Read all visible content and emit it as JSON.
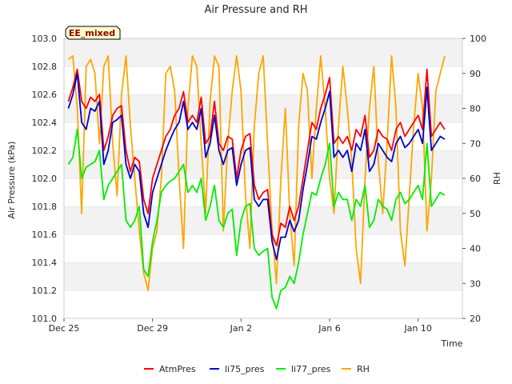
{
  "chart_data": {
    "type": "line",
    "title": "Air Pressure and RH",
    "badge": "EE_mixed",
    "xlabel": "Time",
    "ylabel": "Air Pressure (kPa)",
    "y2label": "RH",
    "xlim": [
      0,
      18
    ],
    "ylim": [
      101.0,
      103.0
    ],
    "y2lim": [
      20,
      100
    ],
    "xticks": [
      {
        "x": 0,
        "label": "Dec 25"
      },
      {
        "x": 4,
        "label": "Dec 29"
      },
      {
        "x": 8,
        "label": "Jan 2"
      },
      {
        "x": 12,
        "label": "Jan 6"
      },
      {
        "x": 16,
        "label": "Jan 10"
      }
    ],
    "yticks": [
      "101.0",
      "101.2",
      "101.4",
      "101.6",
      "101.8",
      "102.0",
      "102.2",
      "102.4",
      "102.6",
      "102.8",
      "103.0"
    ],
    "y2ticks": [
      "20",
      "30",
      "40",
      "50",
      "60",
      "70",
      "80",
      "90",
      "100"
    ],
    "grid": "horizontal bands",
    "legend_position": "bottom",
    "x": [
      0.2,
      0.4,
      0.6,
      0.8,
      1.0,
      1.2,
      1.4,
      1.6,
      1.8,
      2.0,
      2.2,
      2.4,
      2.6,
      2.8,
      3.0,
      3.2,
      3.4,
      3.6,
      3.8,
      4.0,
      4.2,
      4.4,
      4.6,
      4.8,
      5.0,
      5.2,
      5.4,
      5.6,
      5.8,
      6.0,
      6.2,
      6.4,
      6.6,
      6.8,
      7.0,
      7.2,
      7.4,
      7.6,
      7.8,
      8.0,
      8.2,
      8.4,
      8.6,
      8.8,
      9.0,
      9.2,
      9.4,
      9.6,
      9.8,
      10.0,
      10.2,
      10.4,
      10.6,
      10.8,
      11.0,
      11.2,
      11.4,
      11.6,
      11.8,
      12.0,
      12.2,
      12.4,
      12.6,
      12.8,
      13.0,
      13.2,
      13.4,
      13.6,
      13.8,
      14.0,
      14.2,
      14.4,
      14.6,
      14.8,
      15.0,
      15.2,
      15.4,
      15.6,
      15.8,
      16.0,
      16.2,
      16.4,
      16.6,
      16.8,
      17.0,
      17.2
    ],
    "series": [
      {
        "name": "AtmPres",
        "color": "#ff0000",
        "axis": "left",
        "values": [
          102.55,
          102.65,
          102.78,
          102.55,
          102.5,
          102.58,
          102.55,
          102.6,
          102.2,
          102.3,
          102.45,
          102.5,
          102.52,
          102.2,
          102.05,
          102.15,
          102.12,
          101.85,
          101.75,
          102.0,
          102.1,
          102.2,
          102.3,
          102.35,
          102.45,
          102.5,
          102.62,
          102.4,
          102.45,
          102.4,
          102.58,
          102.25,
          102.3,
          102.55,
          102.25,
          102.2,
          102.3,
          102.28,
          102.0,
          102.2,
          102.3,
          102.32,
          101.95,
          101.85,
          101.9,
          101.92,
          101.6,
          101.52,
          101.68,
          101.65,
          101.8,
          101.7,
          101.8,
          102.0,
          102.2,
          102.4,
          102.35,
          102.5,
          102.6,
          102.72,
          102.25,
          102.3,
          102.25,
          102.3,
          102.2,
          102.35,
          102.3,
          102.45,
          102.15,
          102.2,
          102.35,
          102.3,
          102.28,
          102.2,
          102.35,
          102.4,
          102.3,
          102.35,
          102.4,
          102.45,
          102.35,
          102.78,
          102.3,
          102.35,
          102.4,
          102.35
        ]
      },
      {
        "name": "li75_pres",
        "color": "#0000cc",
        "axis": "left",
        "values": [
          102.5,
          102.6,
          102.75,
          102.4,
          102.35,
          102.5,
          102.48,
          102.55,
          102.1,
          102.2,
          102.4,
          102.42,
          102.45,
          102.1,
          102.0,
          102.1,
          102.05,
          101.75,
          101.65,
          101.9,
          102.0,
          102.1,
          102.2,
          102.28,
          102.35,
          102.4,
          102.55,
          102.35,
          102.4,
          102.35,
          102.5,
          102.15,
          102.25,
          102.45,
          102.2,
          102.1,
          102.2,
          102.22,
          101.95,
          102.1,
          102.2,
          102.22,
          101.85,
          101.8,
          101.85,
          101.85,
          101.55,
          101.42,
          101.58,
          101.58,
          101.7,
          101.62,
          101.7,
          101.92,
          102.1,
          102.3,
          102.28,
          102.4,
          102.5,
          102.62,
          102.15,
          102.2,
          102.15,
          102.2,
          102.05,
          102.25,
          102.2,
          102.35,
          102.05,
          102.1,
          102.25,
          102.2,
          102.15,
          102.12,
          102.25,
          102.3,
          102.22,
          102.25,
          102.3,
          102.35,
          102.25,
          102.65,
          102.2,
          102.25,
          102.3,
          102.28
        ]
      },
      {
        "name": "li77_pres",
        "color": "#00ee00",
        "axis": "left",
        "values": [
          102.1,
          102.15,
          102.35,
          102.0,
          102.08,
          102.1,
          102.12,
          102.2,
          101.85,
          101.95,
          102.0,
          102.05,
          102.1,
          101.7,
          101.65,
          101.7,
          101.8,
          101.35,
          101.3,
          101.55,
          101.7,
          101.9,
          101.95,
          101.98,
          102.0,
          102.05,
          102.1,
          101.9,
          101.95,
          101.9,
          102.0,
          101.7,
          101.8,
          101.95,
          101.7,
          101.65,
          101.75,
          101.78,
          101.45,
          101.7,
          101.8,
          101.82,
          101.5,
          101.45,
          101.48,
          101.5,
          101.15,
          101.07,
          101.2,
          101.22,
          101.3,
          101.25,
          101.4,
          101.6,
          101.75,
          101.9,
          101.88,
          102.0,
          102.1,
          102.25,
          101.8,
          101.9,
          101.85,
          101.85,
          101.7,
          101.85,
          101.8,
          101.95,
          101.65,
          101.7,
          101.85,
          101.8,
          101.78,
          101.7,
          101.85,
          101.9,
          101.82,
          101.85,
          101.9,
          101.95,
          101.85,
          102.25,
          101.8,
          101.85,
          101.9,
          101.88
        ]
      },
      {
        "name": "RH",
        "color": "#ffa500",
        "axis": "right",
        "values": [
          94,
          95,
          80,
          50,
          92,
          94,
          90,
          70,
          92,
          95,
          70,
          55,
          84,
          95,
          75,
          60,
          45,
          33,
          28,
          40,
          45,
          60,
          90,
          92,
          85,
          60,
          40,
          80,
          95,
          92,
          70,
          50,
          82,
          95,
          92,
          45,
          70,
          85,
          95,
          85,
          55,
          40,
          75,
          90,
          95,
          70,
          45,
          30,
          60,
          80,
          50,
          35,
          75,
          90,
          85,
          60,
          80,
          95,
          80,
          60,
          50,
          75,
          92,
          80,
          65,
          40,
          30,
          60,
          80,
          92,
          65,
          50,
          70,
          95,
          80,
          45,
          35,
          55,
          75,
          90,
          80,
          45,
          60,
          85,
          90,
          95
        ]
      }
    ]
  }
}
